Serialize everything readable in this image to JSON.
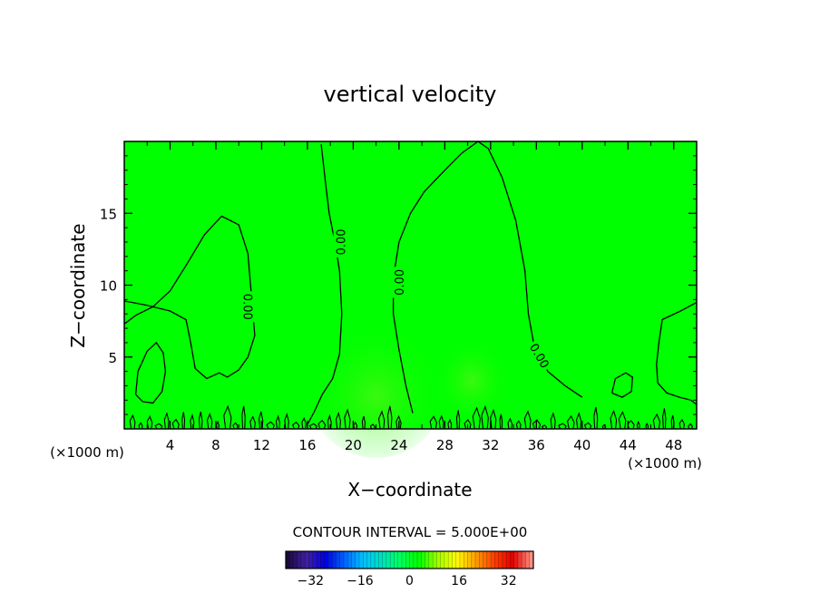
{
  "chart_data": {
    "type": "contour",
    "title": "vertical velocity",
    "xlabel": "X−coordinate",
    "ylabel": "Z−coordinate",
    "x_unit": "(×1000 m)",
    "y_unit": "(×1000 m)",
    "xlim": [
      0,
      50
    ],
    "ylim": [
      0,
      20
    ],
    "x_ticks": [
      4,
      8,
      12,
      16,
      20,
      24,
      28,
      32,
      36,
      40,
      44,
      48
    ],
    "x_tick_labels": [
      "4",
      "8",
      "12",
      "16",
      "20",
      "24",
      "28",
      "32",
      "36",
      "40",
      "44",
      "48"
    ],
    "y_ticks": [
      5,
      10,
      15
    ],
    "y_tick_labels": [
      "5",
      "10",
      "15"
    ],
    "background_color": "#00ff00",
    "contour_interval_text": "CONTOUR INTERVAL = 5.000E+00",
    "contour_label_text": "0.00",
    "zero_contours": [
      {
        "name": "left",
        "points": [
          [
            0,
            7.3
          ],
          [
            1,
            7.9
          ],
          [
            2.5,
            8.5
          ],
          [
            4,
            9.6
          ],
          [
            5.5,
            11.5
          ],
          [
            7,
            13.5
          ],
          [
            8.5,
            14.8
          ],
          [
            10,
            14.2
          ],
          [
            10.8,
            12.2
          ],
          [
            11,
            10.3
          ],
          [
            11.2,
            8.5
          ],
          [
            11.4,
            6.5
          ],
          [
            10.8,
            5
          ],
          [
            10,
            4.1
          ],
          [
            9,
            3.6
          ],
          [
            8.3,
            3.9
          ],
          [
            7.2,
            3.5
          ],
          [
            6.2,
            4.2
          ],
          [
            5.8,
            6
          ],
          [
            5.4,
            7.6
          ],
          [
            4,
            8.2
          ],
          [
            2,
            8.6
          ],
          [
            0,
            8.9
          ]
        ]
      },
      {
        "name": "center-left",
        "points": [
          [
            16,
            0.3
          ],
          [
            16.6,
            1.2
          ],
          [
            17.3,
            2.4
          ],
          [
            18.2,
            3.5
          ],
          [
            18.8,
            5.2
          ],
          [
            19,
            8
          ],
          [
            18.8,
            11
          ],
          [
            18.4,
            13
          ],
          [
            17.9,
            15
          ],
          [
            17.6,
            17
          ],
          [
            17.2,
            19.8
          ]
        ]
      },
      {
        "name": "center-right",
        "points": [
          [
            25.2,
            1.1
          ],
          [
            24.6,
            3
          ],
          [
            24,
            5.5
          ],
          [
            23.5,
            8
          ],
          [
            23.5,
            10.5
          ],
          [
            24,
            13
          ],
          [
            25,
            15
          ],
          [
            26.2,
            16.5
          ],
          [
            28,
            18
          ],
          [
            29.5,
            19.2
          ],
          [
            30.9,
            20
          ],
          [
            31.8,
            19.5
          ],
          [
            33,
            17.5
          ],
          [
            34.2,
            14.5
          ],
          [
            35,
            11
          ],
          [
            35.3,
            8
          ],
          [
            35.8,
            5.8
          ],
          [
            37,
            4
          ],
          [
            38.5,
            3
          ],
          [
            40,
            2.2
          ]
        ]
      },
      {
        "name": "right-top",
        "points": [
          [
            50,
            8.8
          ],
          [
            48.6,
            8.2
          ],
          [
            47,
            7.6
          ],
          [
            46.7,
            6
          ],
          [
            46.5,
            4.5
          ],
          [
            46.6,
            3.2
          ],
          [
            47.4,
            2.5
          ],
          [
            48.5,
            2.2
          ],
          [
            49.5,
            2
          ],
          [
            50,
            1.7
          ]
        ]
      },
      {
        "name": "left-bottom-loop",
        "points": [
          [
            1,
            2.4
          ],
          [
            1.2,
            4
          ],
          [
            2,
            5.4
          ],
          [
            2.8,
            6
          ],
          [
            3.4,
            5.3
          ],
          [
            3.6,
            4
          ],
          [
            3.3,
            2.6
          ],
          [
            2.5,
            1.8
          ],
          [
            1.6,
            1.9
          ],
          [
            1,
            2.4
          ]
        ]
      },
      {
        "name": "right-mid-loop",
        "points": [
          [
            42.6,
            2.5
          ],
          [
            42.9,
            3.5
          ],
          [
            43.8,
            3.9
          ],
          [
            44.4,
            3.6
          ],
          [
            44.3,
            2.6
          ],
          [
            43.5,
            2.2
          ],
          [
            42.6,
            2.5
          ]
        ]
      }
    ],
    "contour_labels": [
      {
        "x": 10.8,
        "y": 8.5,
        "angle": 90
      },
      {
        "x": 18.9,
        "y": 13,
        "angle": -90
      },
      {
        "x": 24.0,
        "y": 10.2,
        "angle": -90
      },
      {
        "x": 36.3,
        "y": 5.1,
        "angle": 60
      }
    ],
    "colorbar": {
      "min": -40,
      "max": 40,
      "ticks": [
        -32,
        -16,
        0,
        16,
        32
      ],
      "tick_labels": [
        "−32",
        "−16",
        "0",
        "16",
        "32"
      ],
      "colors": [
        "#1a0a3c",
        "#4020a0",
        "#0000e0",
        "#0060ff",
        "#00c0ff",
        "#00e0c0",
        "#00ff60",
        "#00ff00",
        "#a0ff00",
        "#ffff00",
        "#ffa000",
        "#ff4000",
        "#e00000",
        "#ff9080"
      ]
    }
  }
}
